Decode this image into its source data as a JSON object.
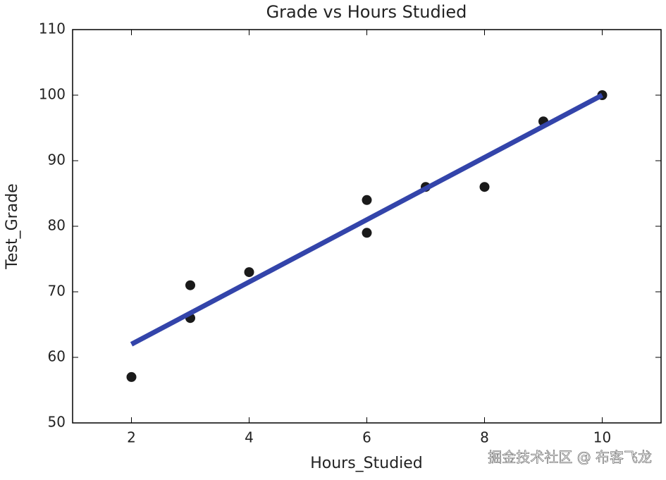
{
  "chart_data": {
    "type": "scatter",
    "title": "Grade vs Hours Studied",
    "x_label": "Hours_Studied",
    "y_label": "Test_Grade",
    "x": [
      2,
      3,
      3,
      4,
      6,
      6,
      7,
      8,
      9,
      10
    ],
    "values": [
      57,
      71,
      66,
      73,
      84,
      79,
      86,
      86,
      96,
      100
    ],
    "color": "#1a1a1a",
    "fit_line": {
      "x": [
        2,
        10
      ],
      "values": [
        62,
        100
      ],
      "color": "#3344aa"
    },
    "xlim": [
      1,
      11
    ],
    "xticks": [
      2,
      4,
      6,
      8,
      10
    ],
    "ylim": [
      50,
      110
    ],
    "yticks": [
      50,
      60,
      70,
      80,
      90,
      100,
      110
    ],
    "grid": false
  },
  "watermark": "掘金技术社区 @ 布客飞龙"
}
